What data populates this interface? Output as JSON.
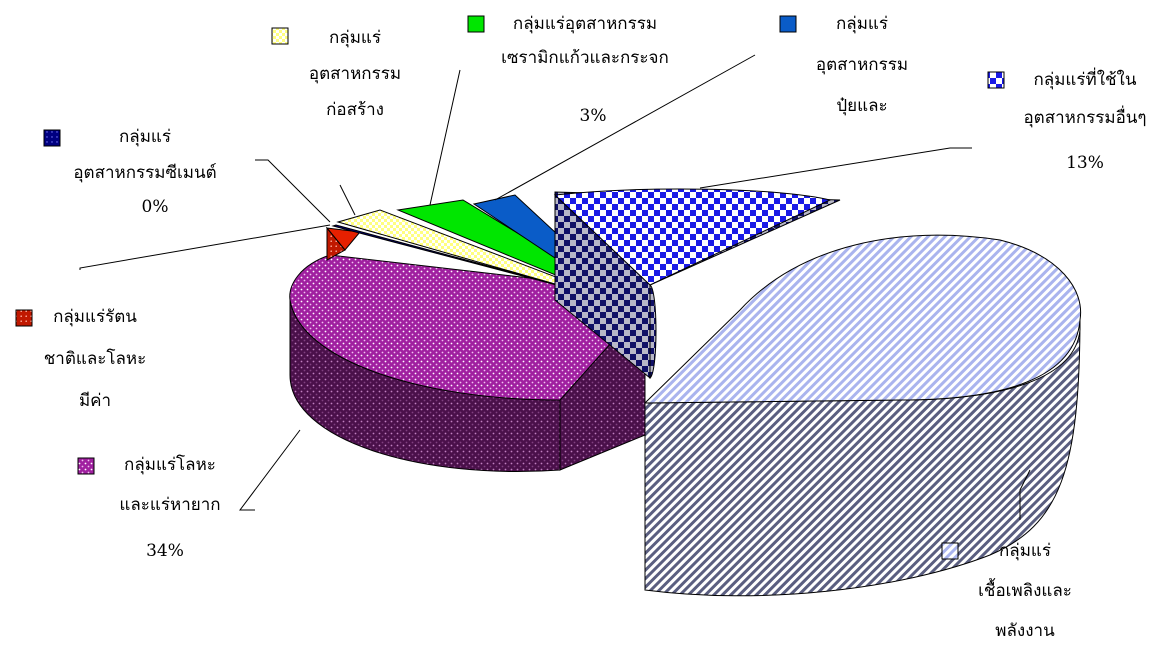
{
  "chart_data": {
    "type": "pie",
    "variant": "3d-exploded",
    "title": "",
    "legend_placement": "labels-with-swatches-around-pie",
    "slices": [
      {
        "key": "fuel",
        "label_lines": [
          "กลุ่มแร่",
          "เชื้อเพลิงและ",
          "พลังงาน"
        ],
        "value": 44,
        "value_label": "",
        "color": "#aab4ee",
        "pattern": "diagonal-stripes"
      },
      {
        "key": "other",
        "label_lines": [
          "กลุ่มแร่ที่ใช้ใน",
          "อุตสาหกรรมอื่นๆ"
        ],
        "value": 13,
        "value_label": "13%",
        "color": "#1a1ae6",
        "pattern": "checker"
      },
      {
        "key": "fertilizer",
        "label_lines": [
          "กลุ่มแร่",
          "อุตสาหกรรม",
          "ปุ๋ยและ"
        ],
        "value": 2,
        "value_label": "",
        "color": "#0a5cc8",
        "pattern": "solid"
      },
      {
        "key": "ceramic",
        "label_lines": [
          "กลุ่มแร่อุตสาหกรรม",
          "เซรามิกแก้วและกระจก"
        ],
        "value": 3,
        "value_label": "3%",
        "color": "#00e600",
        "pattern": "solid"
      },
      {
        "key": "construct",
        "label_lines": [
          "กลุ่มแร่",
          "อุตสาหกรรม",
          "ก่อสร้าง"
        ],
        "value": 2,
        "value_label": "",
        "color": "#ffff80",
        "pattern": "grid"
      },
      {
        "key": "cement",
        "label_lines": [
          "กลุ่มแร่",
          "อุตสาหกรรมซีเมนต์"
        ],
        "value": 0,
        "value_label": "0%",
        "color": "#000080",
        "pattern": "dots"
      },
      {
        "key": "gem",
        "label_lines": [
          "กลุ่มแร่รัตน",
          "ชาติและโลหะ",
          "มีค่า"
        ],
        "value": 2,
        "value_label": "",
        "color": "#e62000",
        "pattern": "dots"
      },
      {
        "key": "metal",
        "label_lines": [
          "กลุ่มแร่โลหะ",
          "และแร่หายาก"
        ],
        "value": 34,
        "value_label": "34%",
        "color": "#a020a0",
        "pattern": "dots"
      }
    ]
  }
}
